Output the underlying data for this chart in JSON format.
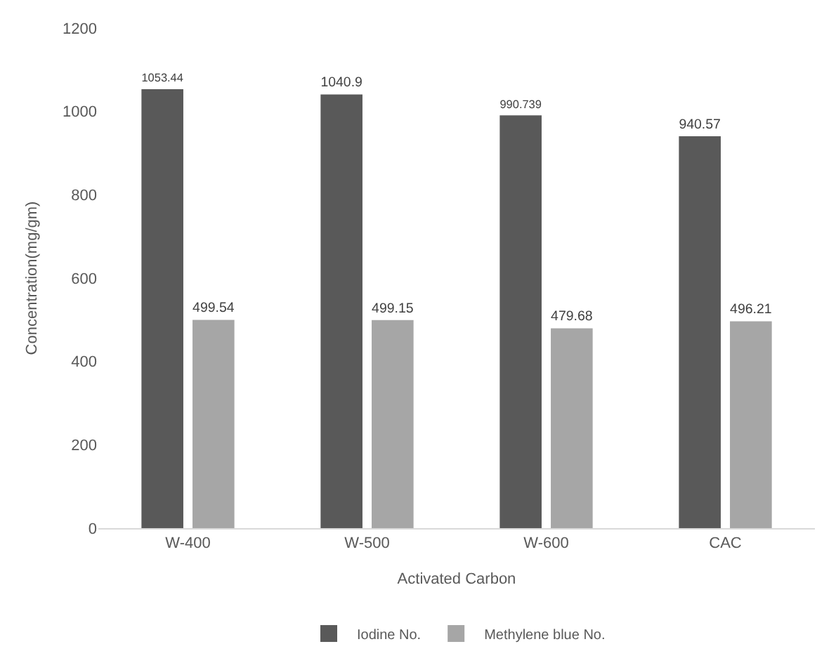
{
  "chart_data": {
    "type": "bar",
    "xlabel": "Activated Carbon",
    "ylabel": "Concentration(mg/gm)",
    "categories": [
      "W-400",
      "W-500",
      "W-600",
      "CAC"
    ],
    "series": [
      {
        "name": "Iodine No.",
        "color": "#595959",
        "values": [
          1053.44,
          1040.9,
          990.739,
          940.57
        ]
      },
      {
        "name": "Methylene blue No.",
        "color": "#a6a6a6",
        "values": [
          499.54,
          499.15,
          479.68,
          496.21
        ]
      }
    ],
    "ylim": [
      0,
      1200
    ],
    "yticks": [
      0,
      200,
      400,
      600,
      800,
      1000,
      1200
    ],
    "data_labels": true,
    "grid": false,
    "legend": "bottom"
  }
}
